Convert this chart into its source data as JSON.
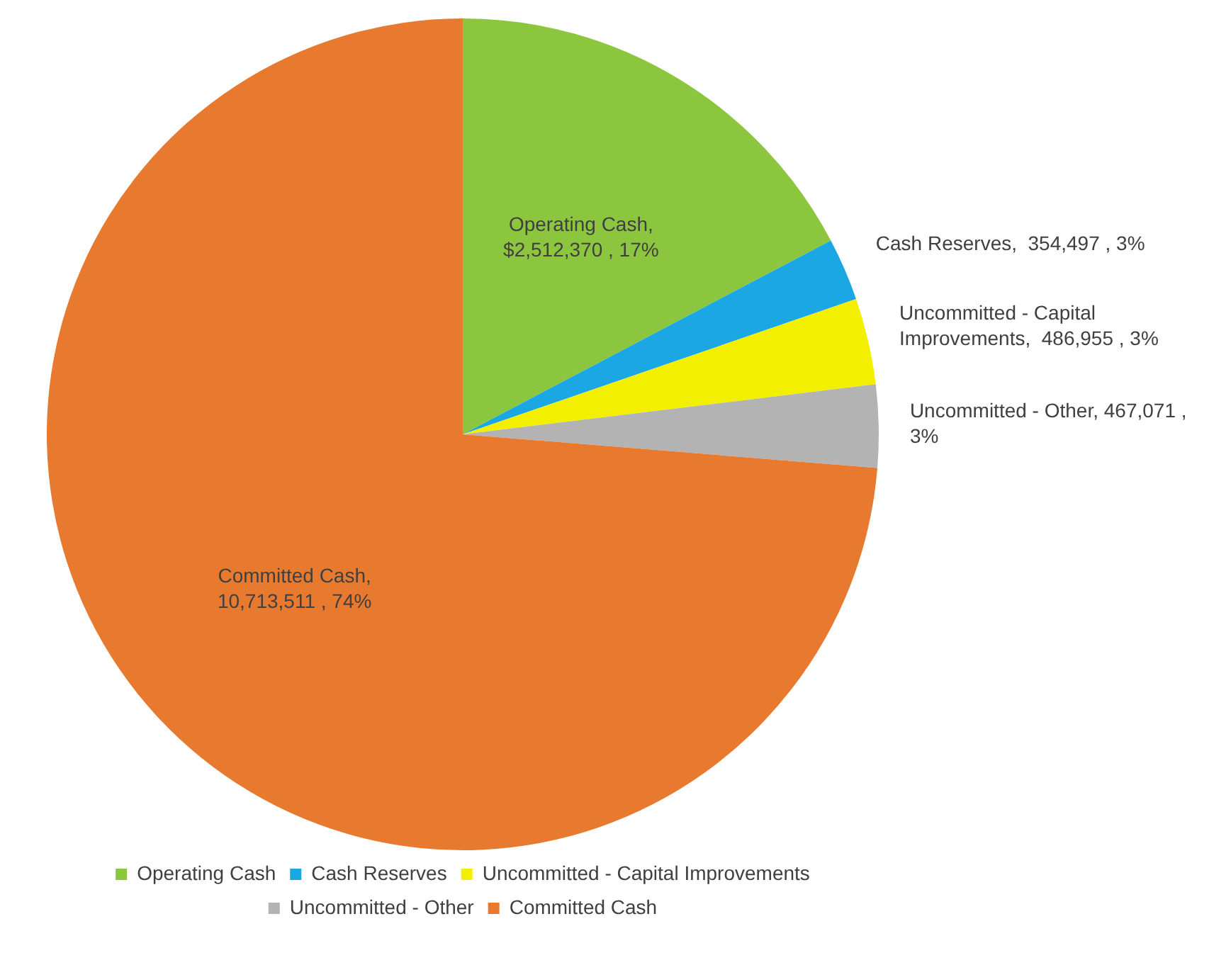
{
  "chart_data": {
    "type": "pie",
    "categories": [
      "Operating Cash",
      "Cash Reserves",
      "Uncommitted - Capital Improvements",
      "Uncommitted - Other",
      "Committed Cash"
    ],
    "values": [
      2512370,
      354497,
      486955,
      467071,
      10713511
    ],
    "colors": [
      "#8cc63f",
      "#1ba6e4",
      "#f2f000",
      "#b3b3b3",
      "#e87a30"
    ],
    "value_labels": [
      "Operating Cash, $2,512,370 , 17%",
      "Cash Reserves,  354,497 , 3%",
      "Uncommitted - Capital Improvements,  486,955 , 3%",
      "Uncommitted - Other, 467,071 , 3%",
      "Committed Cash, 10,713,511 , 74%"
    ],
    "legend": "bottom"
  }
}
